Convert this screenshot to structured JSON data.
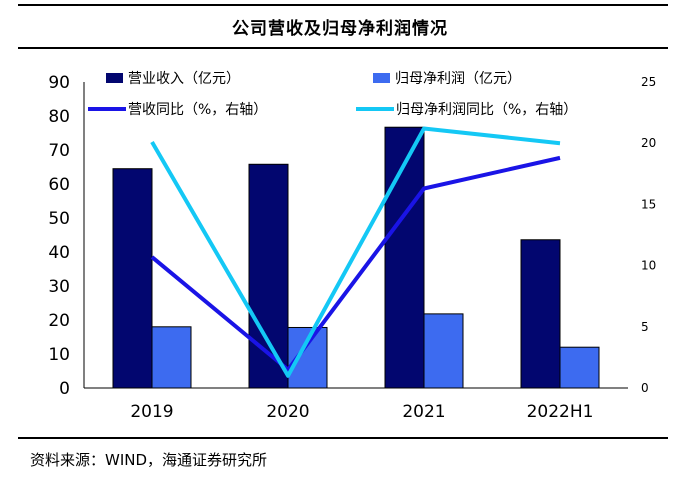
{
  "title": "公司营收及归母净利润情况",
  "source": "资料来源：WIND，海通证券研究所",
  "colors": {
    "revenue_bar": "#02066F",
    "profit_bar": "#3D6BF0",
    "revenue_yoy_line": "#1A14E6",
    "profit_yoy_line": "#14C8F5"
  },
  "chart_data": {
    "type": "bar",
    "categories": [
      "2019",
      "2020",
      "2021",
      "2022H1"
    ],
    "series": [
      {
        "name": "营业收入（亿元）",
        "kind": "bar",
        "axis": "left",
        "values": [
          64.5,
          65.8,
          76.7,
          43.6
        ]
      },
      {
        "name": "归母净利润（亿元）",
        "kind": "bar",
        "axis": "left",
        "values": [
          18.0,
          17.8,
          21.8,
          12.0
        ]
      },
      {
        "name": "营收同比（%，右轴）",
        "kind": "line",
        "axis": "right",
        "values": [
          10.7,
          1.5,
          16.3,
          18.8
        ]
      },
      {
        "name": "归母净利润同比（%，右轴）",
        "kind": "line",
        "axis": "right",
        "values": [
          20.1,
          1.0,
          21.2,
          20.0
        ]
      }
    ],
    "y_left": {
      "min": 0,
      "max": 90,
      "ticks": [
        "0",
        "10",
        "20",
        "30",
        "40",
        "50",
        "60",
        "70",
        "80",
        "90"
      ]
    },
    "y_right": {
      "min": 0,
      "max": 25,
      "ticks": [
        "0",
        "5",
        "10",
        "15",
        "20",
        "25"
      ]
    },
    "grid": false,
    "legend": "top"
  }
}
